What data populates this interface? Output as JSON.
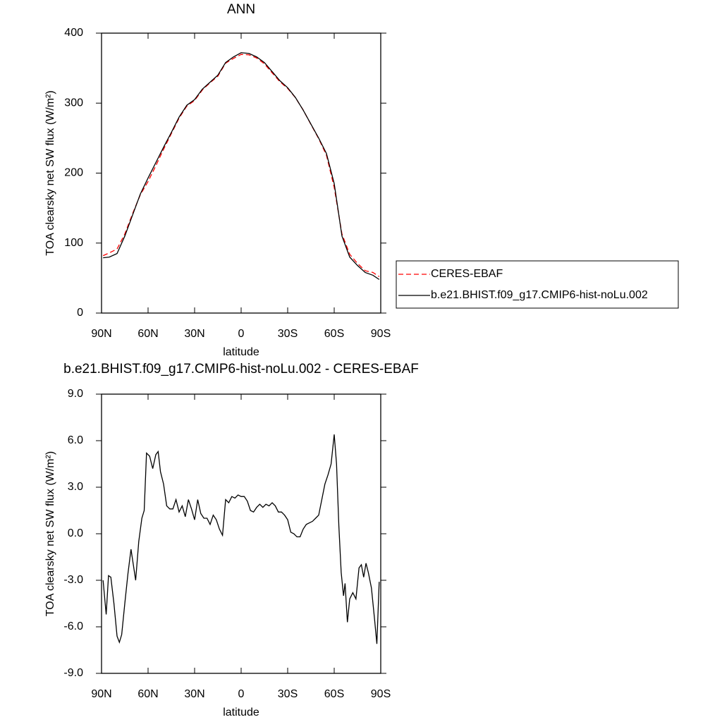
{
  "chart_data": [
    {
      "type": "line",
      "title": "ANN",
      "xlabel": "latitude",
      "ylabel": "TOA clearsky net SW flux (W/m²)",
      "x": [
        89,
        85,
        80,
        75,
        70,
        65,
        60,
        55,
        50,
        45,
        40,
        35,
        30,
        25,
        20,
        15,
        10,
        5,
        0,
        -5,
        -10,
        -15,
        -20,
        -25,
        -30,
        -35,
        -40,
        -45,
        -50,
        -55,
        -60,
        -65,
        -70,
        -75,
        -80,
        -85,
        -89
      ],
      "series": [
        {
          "name": "CERES-EBAF",
          "color": "#ff0000",
          "dash": true,
          "values": [
            82,
            86,
            91.5,
            113,
            142,
            169,
            188,
            210.5,
            234,
            256.4,
            278.5,
            295.8,
            303.7,
            318.8,
            329.2,
            338.5,
            357.1,
            363.8,
            369.6,
            369,
            364.5,
            356.2,
            343.2,
            330.5,
            321,
            307.8,
            290.2,
            269.5,
            249.2,
            225.5,
            179.5,
            113,
            84,
            71,
            60.5,
            58,
            52
          ]
        },
        {
          "name": "b.e21.BHIST.f09_g17.CMIP6-hist-noLu.002",
          "color": "#000000",
          "dash": false,
          "values": [
            79,
            80,
            85,
            110,
            140,
            170,
            193,
            215,
            237,
            258,
            280,
            297,
            305,
            320,
            330,
            340,
            358,
            366,
            372,
            371,
            366,
            358,
            345,
            332,
            322,
            308,
            290,
            270,
            250,
            228,
            185,
            110,
            80,
            68,
            58,
            54,
            48
          ]
        }
      ],
      "xlim": [
        90,
        -90
      ],
      "xticks": [
        {
          "value": 90,
          "label": "90N"
        },
        {
          "value": 60,
          "label": "60N"
        },
        {
          "value": 30,
          "label": "30N"
        },
        0,
        {
          "value": -30,
          "label": "30S"
        },
        {
          "value": -60,
          "label": "60S"
        },
        {
          "value": -90,
          "label": "90S"
        }
      ],
      "ylim": [
        0,
        400
      ],
      "yticks": [
        0,
        100,
        200,
        300,
        400
      ],
      "legend": "right"
    },
    {
      "type": "line",
      "title": "b.e21.BHIST.f09_g17.CMIP6-hist-noLu.002 - CERES-EBAF",
      "xlabel": "latitude",
      "ylabel": "TOA clearsky net SW flux (W/m²)",
      "x": [
        89,
        87,
        85.5,
        84,
        82,
        80,
        78.5,
        77,
        75,
        73,
        71,
        69.5,
        68,
        66,
        64,
        62.5,
        61,
        59,
        57,
        55,
        53.5,
        52,
        50,
        48,
        46,
        44,
        42,
        40,
        38,
        36,
        34,
        32,
        30,
        28,
        26,
        24,
        22,
        20,
        18,
        16,
        14,
        12,
        10,
        8,
        6,
        4,
        2,
        0,
        -2,
        -4,
        -6,
        -8,
        -10,
        -12,
        -14,
        -16,
        -18,
        -20,
        -22,
        -24,
        -26,
        -28,
        -30,
        -32,
        -34,
        -36,
        -38,
        -40,
        -42,
        -44,
        -46,
        -48,
        -50,
        -52,
        -54,
        -56,
        -58,
        -60,
        -61.5,
        -63,
        -64.5,
        -66,
        -67,
        -68.5,
        -70,
        -72,
        -74,
        -76,
        -77.5,
        -79,
        -80.5,
        -82,
        -84,
        -86,
        -87.5,
        -89
      ],
      "series": [
        {
          "name": "b.e21.BHIST.f09_g17.CMIP6-hist-noLu.002 - CERES-EBAF",
          "color": "#000000",
          "dash": false,
          "values": [
            -3.0,
            -5.2,
            -2.7,
            -2.8,
            -4.5,
            -6.6,
            -7.0,
            -6.5,
            -4.5,
            -2.6,
            -1.0,
            -2.0,
            -3.0,
            -0.5,
            1.0,
            1.5,
            5.2,
            5.0,
            4.2,
            5.1,
            5.3,
            4.0,
            3.2,
            1.8,
            1.6,
            1.6,
            2.2,
            1.4,
            1.8,
            1.1,
            2.2,
            1.6,
            0.9,
            2.2,
            1.3,
            1.0,
            1.0,
            0.6,
            1.2,
            0.9,
            0.3,
            -0.1,
            2.2,
            2.0,
            2.4,
            2.3,
            2.5,
            2.4,
            2.4,
            2.1,
            1.5,
            1.4,
            1.7,
            1.9,
            1.7,
            1.9,
            1.8,
            2.0,
            1.8,
            1.4,
            1.4,
            1.2,
            0.9,
            0.1,
            0.0,
            -0.2,
            -0.2,
            0.3,
            0.6,
            0.7,
            0.8,
            1.0,
            1.2,
            2.2,
            3.2,
            3.8,
            4.5,
            6.4,
            4.5,
            0.5,
            -2.5,
            -4.0,
            -3.2,
            -5.7,
            -4.2,
            -3.8,
            -4.2,
            -2.2,
            -2.0,
            -2.8,
            -1.9,
            -2.5,
            -3.5,
            -5.5,
            -7.1,
            -3.1
          ]
        }
      ],
      "xlim": [
        90,
        -90
      ],
      "xticks": [
        {
          "value": 90,
          "label": "90N"
        },
        {
          "value": 60,
          "label": "60N"
        },
        {
          "value": 30,
          "label": "30N"
        },
        0,
        {
          "value": -30,
          "label": "30S"
        },
        {
          "value": -60,
          "label": "60S"
        },
        {
          "value": -90,
          "label": "90S"
        }
      ],
      "ylim": [
        -9,
        9
      ],
      "yticks": [
        {
          "value": -9,
          "label": "-9.0"
        },
        {
          "value": -6,
          "label": "-6.0"
        },
        {
          "value": -3,
          "label": "-3.0"
        },
        {
          "value": 0,
          "label": "0.0"
        },
        {
          "value": 3,
          "label": "3.0"
        },
        {
          "value": 6,
          "label": "6.0"
        },
        {
          "value": 9,
          "label": "9.0"
        }
      ]
    }
  ]
}
